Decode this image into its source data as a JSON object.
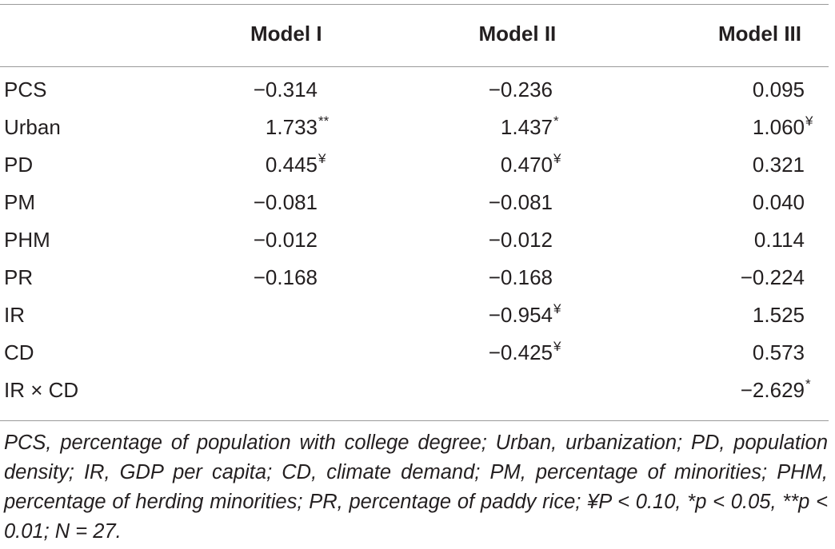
{
  "table": {
    "columns": [
      "Model I",
      "Model II",
      "Model III"
    ],
    "rows": [
      {
        "label": "PCS",
        "cells": [
          {
            "text": "−0.314"
          },
          {
            "text": "−0.236"
          },
          {
            "text": "0.095"
          }
        ]
      },
      {
        "label": "Urban",
        "cells": [
          {
            "text": "1.733",
            "sup": "**"
          },
          {
            "text": "1.437",
            "sup": "*"
          },
          {
            "text": "1.060",
            "sup": "¥"
          }
        ]
      },
      {
        "label": "PD",
        "cells": [
          {
            "text": "0.445",
            "sup": "¥"
          },
          {
            "text": "0.470",
            "sup": "¥"
          },
          {
            "text": "0.321"
          }
        ]
      },
      {
        "label": "PM",
        "cells": [
          {
            "text": "−0.081"
          },
          {
            "text": "−0.081"
          },
          {
            "text": "0.040"
          }
        ]
      },
      {
        "label": "PHM",
        "cells": [
          {
            "text": "−0.012"
          },
          {
            "text": "−0.012"
          },
          {
            "text": "0.114"
          }
        ]
      },
      {
        "label": "PR",
        "cells": [
          {
            "text": "−0.168"
          },
          {
            "text": "−0.168"
          },
          {
            "text": "−0.224"
          }
        ]
      },
      {
        "label": "IR",
        "cells": [
          null,
          {
            "text": "−0.954",
            "sup": "¥"
          },
          {
            "text": "1.525"
          }
        ]
      },
      {
        "label": "CD",
        "cells": [
          null,
          {
            "text": "−0.425",
            "sup": "¥"
          },
          {
            "text": "0.573"
          }
        ]
      },
      {
        "label": "IR × CD",
        "cells": [
          null,
          null,
          {
            "text": "−2.629",
            "sup": "*"
          }
        ]
      }
    ]
  },
  "footnote": "PCS, percentage of population with college degree; Urban, urbanization; PD, population density; IR, GDP per capita; CD, climate demand; PM, percentage of minorities; PHM, percentage of herding minorities; PR, percentage of paddy rice; ¥P < 0.10, *p < 0.05, **p < 0.01; N = 27."
}
